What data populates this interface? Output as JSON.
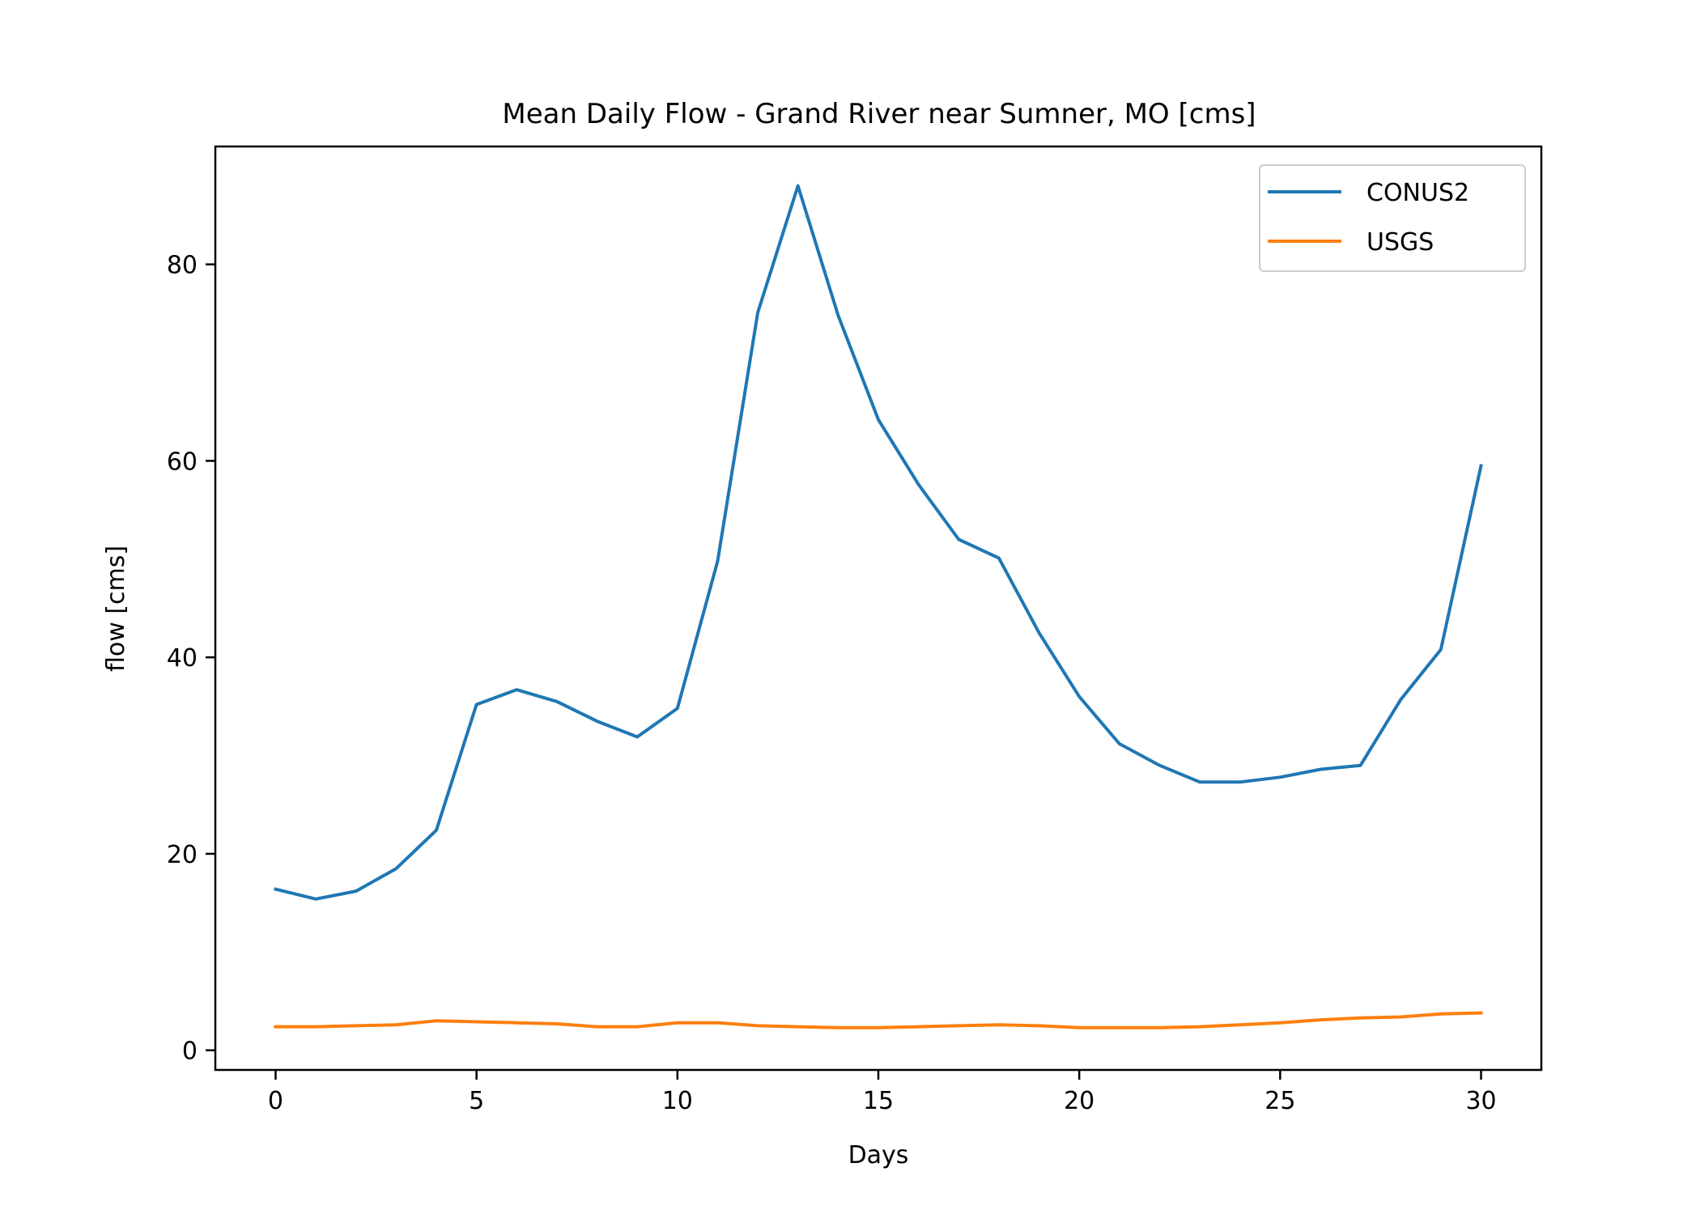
{
  "chart_data": {
    "type": "line",
    "title": "Mean Daily Flow - Grand River near Sumner, MO [cms]",
    "xlabel": "Days",
    "ylabel": "flow [cms]",
    "xlim": [
      -1.5,
      31.5
    ],
    "ylim": [
      -2,
      92
    ],
    "xticks": [
      0,
      5,
      10,
      15,
      20,
      25,
      30
    ],
    "yticks": [
      0,
      20,
      40,
      60,
      80
    ],
    "grid": false,
    "legend_position": "top-right",
    "x": [
      0,
      1,
      2,
      3,
      4,
      5,
      6,
      7,
      8,
      9,
      10,
      11,
      12,
      13,
      14,
      15,
      16,
      17,
      18,
      19,
      20,
      21,
      22,
      23,
      24,
      25,
      26,
      27,
      28,
      29,
      30
    ],
    "series": [
      {
        "name": "CONUS2",
        "color": "#1f77b4",
        "values": [
          16.4,
          15.4,
          16.2,
          18.5,
          22.4,
          35.2,
          36.7,
          35.5,
          33.5,
          31.9,
          34.8,
          49.8,
          75.1,
          88.0,
          74.8,
          64.2,
          57.6,
          52.0,
          50.1,
          42.5,
          36.0,
          31.2,
          29.0,
          27.3,
          27.3,
          27.8,
          28.6,
          29.0,
          35.7,
          40.8,
          59.5
        ]
      },
      {
        "name": "USGS",
        "color": "#ff7f0e",
        "values": [
          2.4,
          2.4,
          2.5,
          2.6,
          3.0,
          2.9,
          2.8,
          2.7,
          2.4,
          2.4,
          2.8,
          2.8,
          2.5,
          2.4,
          2.3,
          2.3,
          2.4,
          2.5,
          2.6,
          2.5,
          2.3,
          2.3,
          2.3,
          2.4,
          2.6,
          2.8,
          3.1,
          3.3,
          3.4,
          3.7,
          3.8
        ]
      }
    ]
  }
}
